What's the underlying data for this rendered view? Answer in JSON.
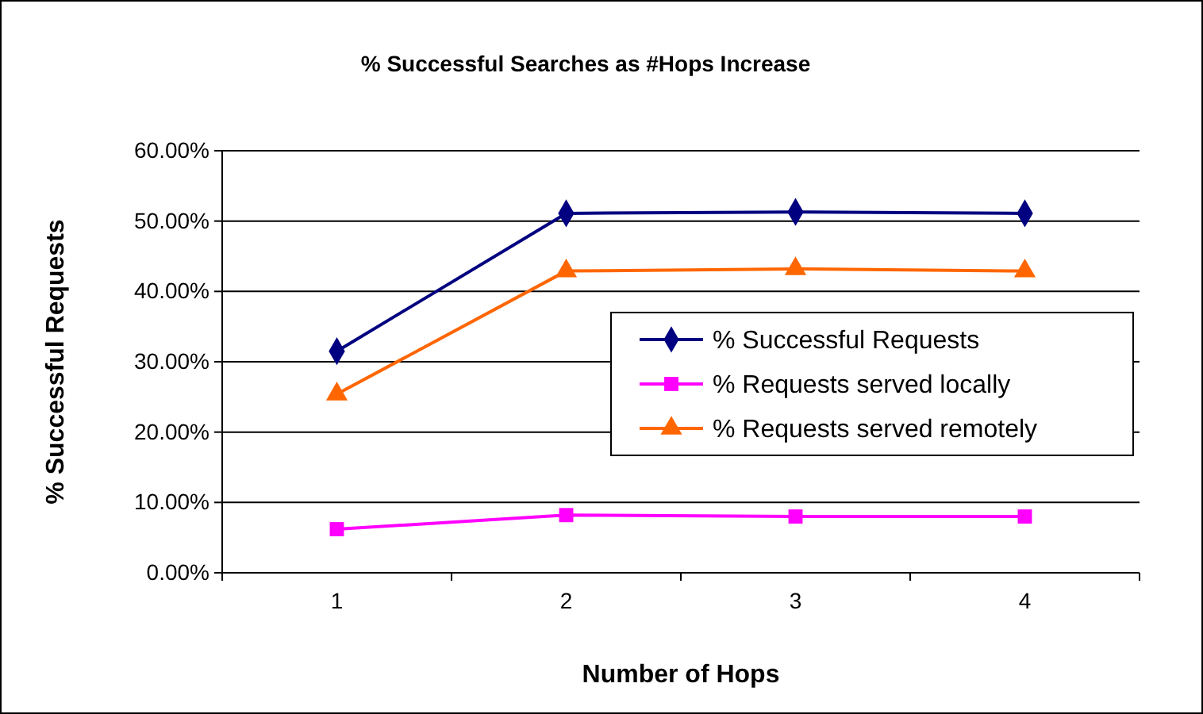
{
  "chart_data": {
    "type": "line",
    "title": "% Successful Searches as #Hops Increase",
    "xlabel": "Number of Hops",
    "ylabel": "% Successful Requests",
    "categories": [
      "1",
      "2",
      "3",
      "4"
    ],
    "series": [
      {
        "name": "% Successful Requests",
        "color": "#000080",
        "marker": "diamond",
        "values": [
          31.5,
          51.1,
          51.3,
          51.1
        ]
      },
      {
        "name": "% Requests served locally",
        "color": "#ff00ff",
        "marker": "square",
        "values": [
          6.2,
          8.2,
          8.0,
          8.0
        ]
      },
      {
        "name": "% Requests served remotely",
        "color": "#ff6600",
        "marker": "triangle",
        "values": [
          25.4,
          42.9,
          43.2,
          42.9
        ]
      }
    ],
    "ylim": [
      0,
      60
    ],
    "yticks": [
      {
        "value": 0,
        "label": "0.00%"
      },
      {
        "value": 10,
        "label": "10.00%"
      },
      {
        "value": 20,
        "label": "20.00%"
      },
      {
        "value": 30,
        "label": "30.00%"
      },
      {
        "value": 40,
        "label": "40.00%"
      },
      {
        "value": 50,
        "label": "50.00%"
      },
      {
        "value": 60,
        "label": "60.00%"
      }
    ],
    "grid": "y",
    "legend": "right"
  }
}
